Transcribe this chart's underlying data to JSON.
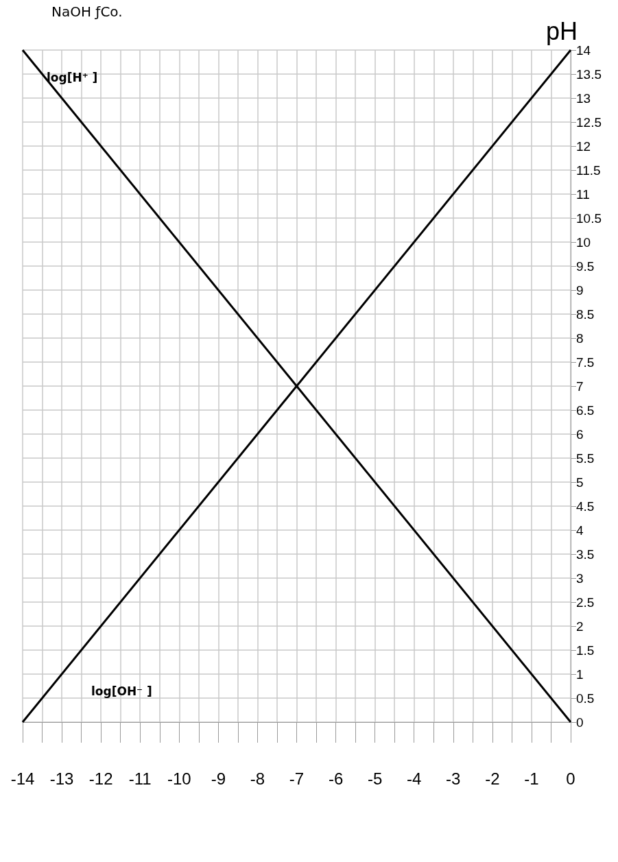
{
  "chart_data": {
    "type": "line",
    "title": "NaOH ƒCo.",
    "ylabel": "pH",
    "xlim": [
      -14,
      0
    ],
    "ylim": [
      0,
      14
    ],
    "xticks": [
      -14,
      {
        "value": -13.5,
        "label": null
      },
      -13,
      {
        "value": -12.5,
        "label": null
      },
      -12,
      {
        "value": -11.5,
        "label": null
      },
      -11,
      {
        "value": -10.5,
        "label": null
      },
      -10,
      {
        "value": -9.5,
        "label": null
      },
      -9,
      {
        "value": -8.5,
        "label": null
      },
      -8,
      {
        "value": -7.5,
        "label": null
      },
      -7,
      {
        "value": -6.5,
        "label": null
      },
      -6,
      {
        "value": -5.5,
        "label": null
      },
      -5,
      {
        "value": -4.5,
        "label": null
      },
      -4,
      {
        "value": -3.5,
        "label": null
      },
      -3,
      {
        "value": -2.5,
        "label": null
      },
      -2,
      {
        "value": -1.5,
        "label": null
      },
      -1,
      {
        "value": -0.5,
        "label": null
      },
      0
    ],
    "yticks": [
      0,
      0.5,
      1,
      1.5,
      2,
      2.5,
      3,
      3.5,
      4,
      4.5,
      5,
      5.5,
      6,
      6.5,
      7,
      7.5,
      8,
      8.5,
      9,
      9.5,
      10,
      10.5,
      11,
      11.5,
      12,
      12.5,
      13,
      13.5,
      14
    ],
    "grid": true,
    "marker": "none",
    "line_style": "solid",
    "legend": false,
    "series": [
      {
        "name": "log[H⁺ ]",
        "color": "#000000",
        "x": [
          -14,
          -7,
          0
        ],
        "values": [
          14,
          7,
          0
        ]
      },
      {
        "name": "log[OH⁻ ]",
        "color": "#000000",
        "x": [
          -14,
          -7,
          0
        ],
        "values": [
          0,
          7,
          14
        ]
      }
    ]
  }
}
